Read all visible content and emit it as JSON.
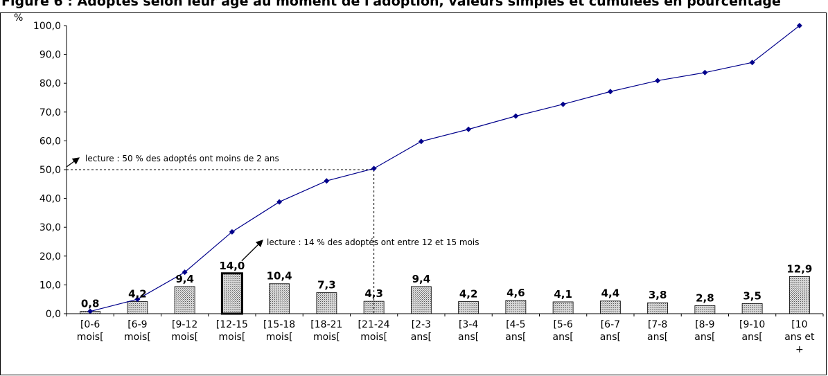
{
  "title": "Figure 6 : Adoptés selon leur âge au moment de l'adoption, valeurs simples et cumulées en pourcentage",
  "chart_data": {
    "type": "bar",
    "ylabel": "%",
    "ylim": [
      0,
      100
    ],
    "yticks": [
      "0,0",
      "10,0",
      "20,0",
      "30,0",
      "40,0",
      "50,0",
      "60,0",
      "70,0",
      "80,0",
      "90,0",
      "100,0"
    ],
    "categories": [
      [
        "[0-6",
        "mois["
      ],
      [
        "[6-9",
        "mois["
      ],
      [
        "[9-12",
        "mois["
      ],
      [
        "[12-15",
        "mois["
      ],
      [
        "[15-18",
        "mois["
      ],
      [
        "[18-21",
        "mois["
      ],
      [
        "[21-24",
        "mois["
      ],
      [
        "[2-3",
        "ans["
      ],
      [
        "[3-4",
        "ans["
      ],
      [
        "[4-5",
        "ans["
      ],
      [
        "[5-6",
        "ans["
      ],
      [
        "[6-7",
        "ans["
      ],
      [
        "[7-8",
        "ans["
      ],
      [
        "[8-9",
        "ans["
      ],
      [
        "[9-10",
        "ans["
      ],
      [
        "[10",
        "ans et",
        "+"
      ]
    ],
    "bar_values": [
      0.8,
      4.2,
      9.4,
      14.0,
      10.4,
      7.3,
      4.3,
      9.4,
      4.2,
      4.6,
      4.1,
      4.4,
      3.8,
      2.8,
      3.5,
      12.9
    ],
    "bar_labels": [
      "0,8",
      "4,2",
      "9,4",
      "14,0",
      "10,4",
      "7,3",
      "4,3",
      "9,4",
      "4,2",
      "4,6",
      "4,1",
      "4,4",
      "3,8",
      "2,8",
      "3,5",
      "12,9"
    ],
    "highlighted_category_index": 3,
    "cumulative_values": [
      0.8,
      5.0,
      14.4,
      28.4,
      38.8,
      46.1,
      50.4,
      59.8,
      64.0,
      68.6,
      72.7,
      77.1,
      80.9,
      83.7,
      87.2,
      100.0
    ],
    "line_color": "#00008b",
    "bar_fill": "#cccccc",
    "annotations": [
      {
        "text": "lecture : 50 % des adoptés ont moins de 2 ans",
        "points_to_value": 50
      },
      {
        "text": "lecture : 14 % des adoptés ont entre 12 et 15 mois",
        "points_to_category_index": 3
      }
    ],
    "grid": false,
    "legend": "none"
  }
}
